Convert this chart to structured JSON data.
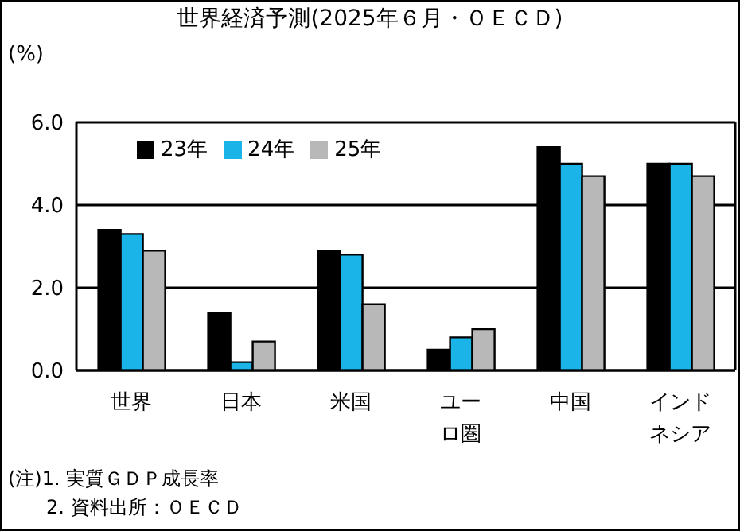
{
  "chart_data": {
    "type": "bar",
    "title": "世界経済予測(2025年６月・ＯＥＣＤ)",
    "ylabel": "(%)",
    "categories": [
      "世界",
      "日本",
      "米国",
      "ユーロ圏",
      "中国",
      "インドネシア"
    ],
    "series": [
      {
        "name": "23年",
        "color": "#000000",
        "values": [
          3.4,
          1.4,
          2.9,
          0.5,
          5.4,
          5.0
        ]
      },
      {
        "name": "24年",
        "color": "#1ab4e8",
        "values": [
          3.3,
          0.2,
          2.8,
          0.8,
          5.0,
          5.0
        ]
      },
      {
        "name": "25年",
        "color": "#b8b8b8",
        "values": [
          2.9,
          0.7,
          1.6,
          1.0,
          4.7,
          4.7
        ]
      }
    ],
    "ylim": [
      0,
      6
    ],
    "yticks": [
      {
        "value": 0,
        "label": "0.0"
      },
      {
        "value": 2,
        "label": "2.0"
      },
      {
        "value": 4,
        "label": "4.0"
      },
      {
        "value": 6,
        "label": "6.0"
      }
    ],
    "grid": "y",
    "legend": "top left",
    "annotations": [
      "(注)1. 実質ＧＤＰ成長率",
      "　　2. 資料出所：ＯＥＣＤ"
    ]
  }
}
